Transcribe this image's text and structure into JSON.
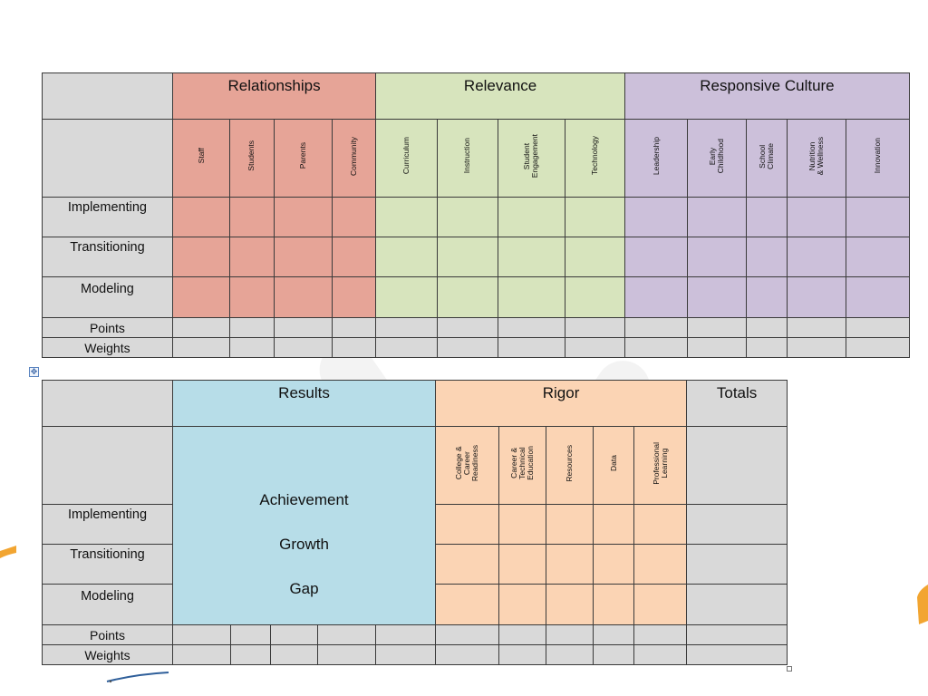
{
  "table1": {
    "groups": [
      {
        "title": "Relationships",
        "color": "#e6a497"
      },
      {
        "title": "Relevance",
        "color": "#d7e4bd"
      },
      {
        "title": "Responsive Culture",
        "color": "#ccc0da"
      }
    ],
    "subheaders": {
      "relationships": [
        "Staff",
        "Students",
        "Parents",
        "Community"
      ],
      "relevance": [
        "Curriculum",
        "Instruction",
        "Student\nEngagement",
        "Technology"
      ],
      "responsive_culture": [
        "Leadership",
        "Early\nChildhood",
        "School\nClimate",
        "Nutrition\n& Wellness",
        "Innovation"
      ]
    },
    "rows": [
      "Implementing",
      "Transitioning",
      "Modeling",
      "Points",
      "Weights"
    ]
  },
  "table2": {
    "groups": [
      {
        "title": "Results",
        "color": "#b7dde8"
      },
      {
        "title": "Rigor",
        "color": "#fbd4b4"
      },
      {
        "title": "Totals",
        "color": "#d9d9d9"
      }
    ],
    "results_items": [
      "Achievement",
      "Growth",
      "Gap"
    ],
    "rigor_subheaders": [
      "College &\nCareer\nReadiness",
      "Career &\nTechnical\nEducation",
      "Resources",
      "Data",
      "Professional\nLearning"
    ],
    "rows": [
      "Implementing",
      "Transitioning",
      "Modeling",
      "Points",
      "Weights"
    ]
  },
  "handles": {
    "move_icon": "move-cross-icon",
    "resize_icon": "resize-square-icon"
  }
}
